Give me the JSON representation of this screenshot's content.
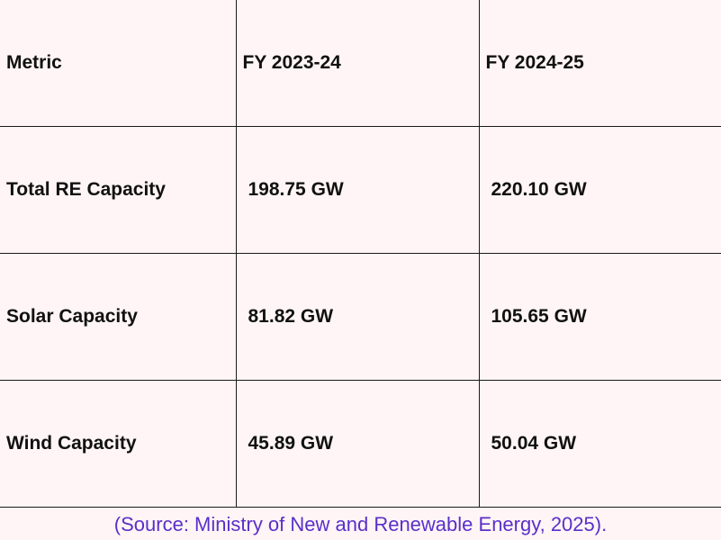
{
  "table": {
    "headers": [
      "Metric",
      "FY 2023-24",
      "FY 2024-25"
    ],
    "rows": [
      [
        "Total RE Capacity",
        "198.75 GW",
        "220.10 GW"
      ],
      [
        "Solar Capacity",
        "81.82 GW",
        "105.65 GW"
      ],
      [
        "Wind Capacity",
        "45.89 GW",
        "50.04 GW"
      ]
    ]
  },
  "source": "(Source: Ministry of New and Renewable Energy, 2025).",
  "colors": {
    "background": "#fff5f6",
    "border": "#1a1a1a",
    "text": "#111111",
    "source_text": "#5b2fc9"
  }
}
